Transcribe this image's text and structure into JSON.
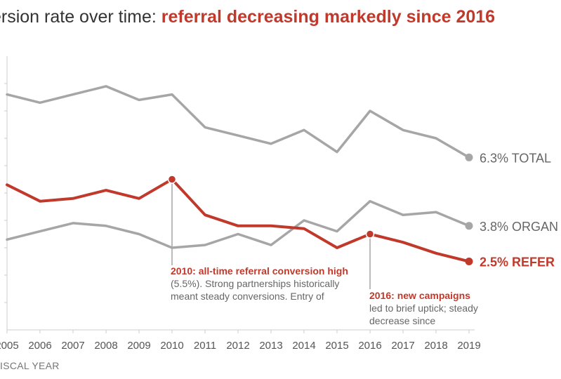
{
  "title": {
    "prefix": "ersion rate over time: ",
    "highlight": "referral decreasing markedly since 2016"
  },
  "colors": {
    "referral": "#c0392b",
    "muted": "#a6a6a6",
    "text": "#333333",
    "axis_text": "#555555"
  },
  "chart_data": {
    "type": "line",
    "x": [
      2005,
      2006,
      2007,
      2008,
      2009,
      2010,
      2011,
      2012,
      2013,
      2014,
      2015,
      2016,
      2017,
      2018,
      2019
    ],
    "ylim": [
      0,
      10
    ],
    "xlabel": "ISCAL YEAR",
    "grid": false,
    "series": [
      {
        "name": "TOTAL",
        "values": [
          8.6,
          8.3,
          8.6,
          8.9,
          8.4,
          8.6,
          7.4,
          7.1,
          6.8,
          7.3,
          6.5,
          8.0,
          7.3,
          7.0,
          6.3
        ]
      },
      {
        "name": "ORGAN",
        "values": [
          3.3,
          3.6,
          3.9,
          3.8,
          3.5,
          3.0,
          3.1,
          3.5,
          3.1,
          4.0,
          3.6,
          4.7,
          4.2,
          4.3,
          3.8
        ]
      },
      {
        "name": "REFER",
        "values": [
          5.3,
          4.7,
          4.8,
          5.1,
          4.8,
          5.5,
          4.2,
          3.8,
          3.8,
          3.7,
          3.0,
          3.5,
          3.2,
          2.8,
          2.5
        ]
      }
    ],
    "end_labels": [
      "6.3% TOTAL",
      "3.8% ORGAN",
      "2.5% REFER"
    ],
    "annotations": [
      {
        "x": 2010,
        "title": "2010: all-time referral conversion high",
        "body": "(5.5%). Strong partnerships historically meant steady conversions. Entry of"
      },
      {
        "x": 2016,
        "title": "2016: new campaigns",
        "body": "led to brief uptick; steady decrease since"
      }
    ]
  }
}
